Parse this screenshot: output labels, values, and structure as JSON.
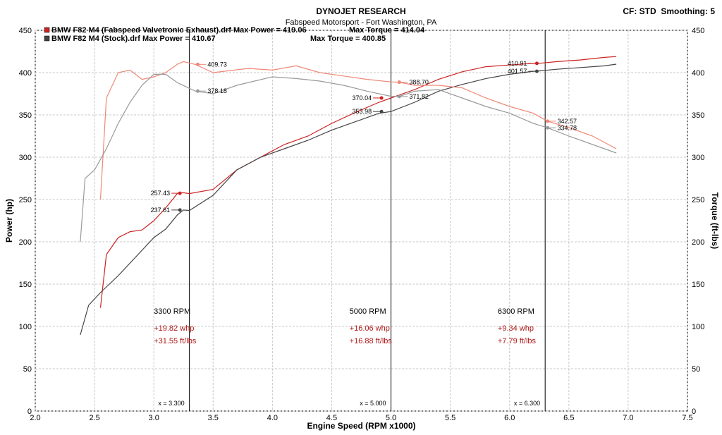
{
  "header": {
    "title": "DYNOJET RESEARCH",
    "subtitle": "Fabspeed Motorsport - Fort Washington, PA",
    "settings": "CF: STD  Smoothing: 5"
  },
  "legend": {
    "items": [
      {
        "text": "BMW F82 M4 (Fabspeed Valvetronic Exhaust).drf Max Power = 419.06",
        "torque_text": "Max Torque = 414.04",
        "color": "#cc2222"
      },
      {
        "text": "BMW F82 M4 (Stock).drf Max Power = 410.67",
        "torque_text": "Max Torque = 400.85",
        "color": "#444444"
      }
    ]
  },
  "chart_data": {
    "type": "line",
    "xlabel": "Engine Speed (RPM x1000)",
    "ylabel": "Power (hp)",
    "y2label": "Torque (ft-lbs)",
    "xlim": [
      2.0,
      7.5
    ],
    "ylim": [
      0,
      450
    ],
    "y2lim": [
      0,
      450
    ],
    "x_ticks": [
      "2.0",
      "2.5",
      "3.0",
      "3.5",
      "4.0",
      "4.5",
      "5.0",
      "5.5",
      "6.0",
      "6.5",
      "7.0",
      "7.5"
    ],
    "y_ticks": [
      "0",
      "50",
      "100",
      "150",
      "200",
      "250",
      "300",
      "350",
      "400",
      "450"
    ],
    "grid": true,
    "colors": {
      "fabspeed": "#cc2222",
      "fabspeed_light": "#ee8877",
      "stock": "#444444",
      "stock_light": "#999999"
    },
    "series": [
      {
        "name": "BMW F82 M4 (Fabspeed Valvetronic Exhaust).drf",
        "quantity": "power",
        "color": "#cc2222",
        "x": [
          2.55,
          2.6,
          2.7,
          2.8,
          2.9,
          3.0,
          3.1,
          3.2,
          3.25,
          3.3,
          3.5,
          3.7,
          3.9,
          4.1,
          4.3,
          4.5,
          4.7,
          4.9,
          5.0,
          5.2,
          5.4,
          5.6,
          5.8,
          6.0,
          6.2,
          6.25,
          6.4,
          6.6,
          6.8,
          6.9
        ],
        "y": [
          122,
          185,
          205,
          212,
          214,
          225,
          240,
          257.4,
          258,
          257,
          262,
          285,
          300,
          315,
          325,
          340,
          353,
          365,
          370,
          380,
          392,
          401,
          407,
          409,
          410.9,
          411,
          413,
          415,
          418,
          419
        ]
      },
      {
        "name": "BMW F82 M4 (Stock).drf",
        "quantity": "power",
        "color": "#444444",
        "x": [
          2.38,
          2.45,
          2.55,
          2.7,
          2.9,
          3.0,
          3.1,
          3.2,
          3.25,
          3.3,
          3.5,
          3.7,
          3.9,
          4.1,
          4.3,
          4.5,
          4.7,
          4.9,
          5.0,
          5.2,
          5.4,
          5.6,
          5.8,
          6.0,
          6.2,
          6.25,
          6.4,
          6.6,
          6.8,
          6.9
        ],
        "y": [
          90,
          125,
          140,
          160,
          190,
          205,
          215,
          232,
          237.6,
          237,
          255,
          285,
          300,
          310,
          320,
          332,
          342,
          352,
          354,
          365,
          378,
          386,
          393,
          398,
          401.6,
          402,
          404,
          406,
          408,
          410
        ]
      },
      {
        "name": "BMW F82 M4 (Fabspeed Valvetronic Exhaust).drf",
        "quantity": "torque",
        "color": "#ee8877",
        "x": [
          2.55,
          2.6,
          2.7,
          2.8,
          2.9,
          3.0,
          3.1,
          3.2,
          3.25,
          3.35,
          3.5,
          3.8,
          4.0,
          4.2,
          4.4,
          4.6,
          4.8,
          5.0,
          5.07,
          5.2,
          5.4,
          5.6,
          5.8,
          6.0,
          6.2,
          6.32,
          6.5,
          6.7,
          6.9
        ],
        "y": [
          250,
          370,
          400,
          403,
          392,
          395,
          400,
          410,
          413,
          409.7,
          400,
          405,
          403,
          408,
          400,
          396,
          392,
          389,
          388.7,
          385,
          385,
          382,
          370,
          360,
          352,
          342.6,
          335,
          325,
          310
        ]
      },
      {
        "name": "BMW F82 M4 (Stock).drf",
        "quantity": "torque",
        "color": "#999999",
        "x": [
          2.38,
          2.42,
          2.5,
          2.6,
          2.7,
          2.8,
          2.9,
          3.0,
          3.1,
          3.2,
          3.35,
          3.5,
          3.7,
          4.0,
          4.2,
          4.4,
          4.6,
          4.8,
          5.0,
          5.07,
          5.2,
          5.4,
          5.6,
          5.8,
          6.0,
          6.2,
          6.32,
          6.5,
          6.7,
          6.9
        ],
        "y": [
          200,
          275,
          285,
          310,
          340,
          365,
          385,
          398,
          398,
          388,
          378.2,
          375,
          385,
          395,
          393,
          390,
          385,
          378,
          372,
          371.8,
          378,
          380,
          370,
          360,
          352,
          340,
          334.8,
          325,
          315,
          305
        ]
      }
    ],
    "point_labels": [
      {
        "rpm": 3.37,
        "value": 409.73,
        "text": "409.73",
        "color": "#ee8877",
        "text_side": "right"
      },
      {
        "rpm": 3.37,
        "value": 378.18,
        "text": "378.18",
        "color": "#999999",
        "text_side": "right"
      },
      {
        "rpm": 3.22,
        "value": 257.43,
        "text": "257.43",
        "color": "#cc2222",
        "text_side": "left"
      },
      {
        "rpm": 3.22,
        "value": 237.61,
        "text": "237.61",
        "color": "#444444",
        "text_side": "left"
      },
      {
        "rpm": 5.07,
        "value": 388.7,
        "text": "388.70",
        "color": "#ee8877",
        "text_side": "right"
      },
      {
        "rpm": 4.92,
        "value": 370.04,
        "text": "370.04",
        "color": "#cc2222",
        "text_side": "left"
      },
      {
        "rpm": 5.07,
        "value": 371.82,
        "text": "371.82",
        "color": "#999999",
        "text_side": "right"
      },
      {
        "rpm": 4.92,
        "value": 353.98,
        "text": "353.98",
        "color": "#444444",
        "text_side": "left"
      },
      {
        "rpm": 6.23,
        "value": 410.91,
        "text": "410.91",
        "color": "#cc2222",
        "text_side": "left"
      },
      {
        "rpm": 6.23,
        "value": 401.57,
        "text": "401.57",
        "color": "#444444",
        "text_side": "left"
      },
      {
        "rpm": 6.32,
        "value": 342.57,
        "text": "342.57",
        "color": "#ee8877",
        "text_side": "right"
      },
      {
        "rpm": 6.32,
        "value": 334.78,
        "text": "334.78",
        "color": "#999999",
        "text_side": "right"
      }
    ],
    "markers": [
      {
        "rpm": 3.3,
        "label": "x = 3.300",
        "annot_x": 3.0,
        "annot_y": [
          115,
          95,
          80
        ],
        "lines": [
          "3300 RPM",
          "+19.82 whp",
          "+31.55 ft/lbs"
        ]
      },
      {
        "rpm": 5.0,
        "label": "x = 5.000",
        "annot_x": 4.65,
        "annot_y": [
          115,
          95,
          80
        ],
        "lines": [
          "5000 RPM",
          "+16.06 whp",
          "+16.88 ft/lbs"
        ]
      },
      {
        "rpm": 6.3,
        "label": "x = 6.300",
        "annot_x": 5.9,
        "annot_y": [
          115,
          95,
          80
        ],
        "lines": [
          "6300 RPM",
          "+9.34 whp",
          "+7.79 ft/lbs"
        ]
      }
    ],
    "annotation_colors": {
      "heading": "#000000",
      "values": "#b01818"
    }
  }
}
